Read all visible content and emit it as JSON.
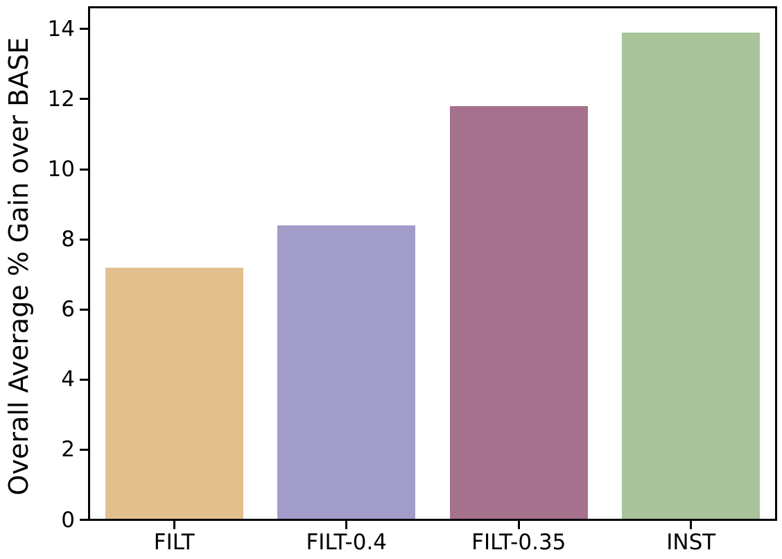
{
  "chart_data": {
    "type": "bar",
    "categories": [
      "FILT",
      "FILT-0.4",
      "FILT-0.35",
      "INST"
    ],
    "values": [
      7.2,
      8.4,
      11.8,
      13.9
    ],
    "bar_colors": [
      "#e2c08e",
      "#a19cc8",
      "#a5718c",
      "#a9c49a"
    ],
    "title": "",
    "xlabel": "",
    "ylabel": "Overall Average % Gain over BASE",
    "ylim": [
      0,
      14.6
    ],
    "yticks": [
      0,
      2,
      4,
      6,
      8,
      10,
      12,
      14
    ],
    "grid": false,
    "legend": null,
    "frame_color": "#000000",
    "background_color": "#ffffff",
    "text_color": "#000000"
  }
}
